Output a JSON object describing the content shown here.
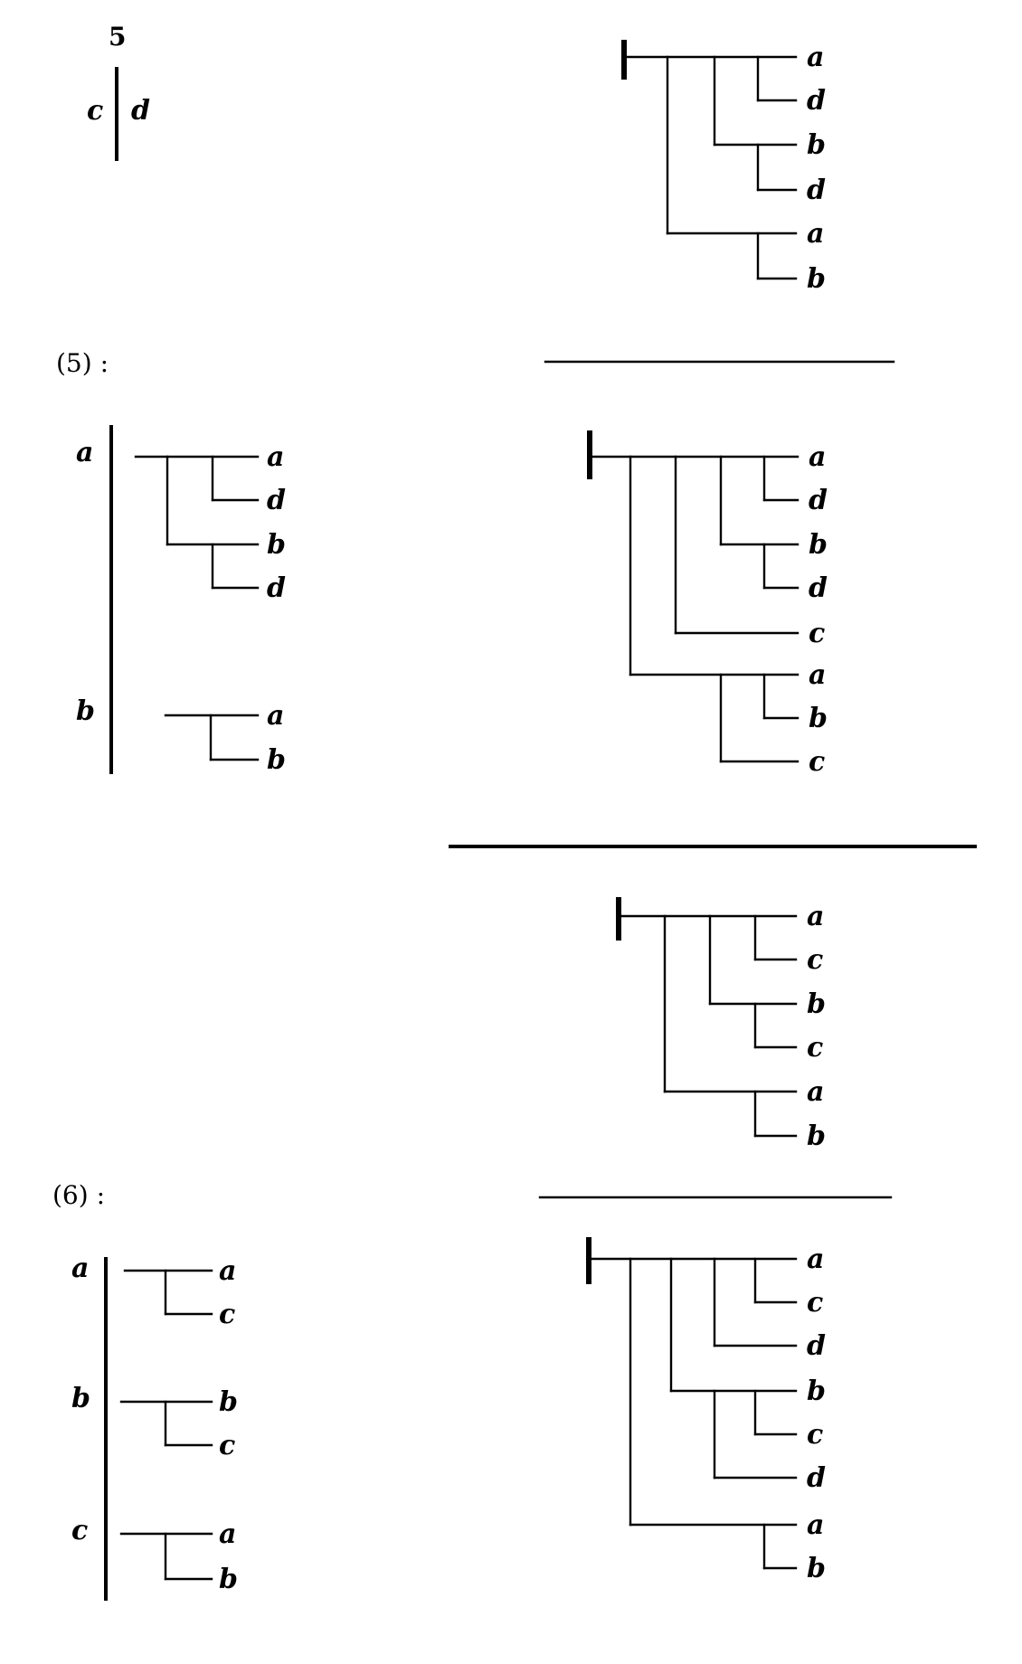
{
  "headers": {
    "top_number": "5",
    "step5": "(5) :",
    "step6": "(6) :"
  },
  "left": {
    "top": {
      "left_label": "c",
      "right_label": "d"
    },
    "step5": {
      "a": "a",
      "b": "b"
    },
    "step6": {
      "a": "a",
      "b": "b",
      "c": "c"
    }
  },
  "leaf_labels": {
    "tree1": [
      "a",
      "d",
      "b",
      "d",
      "a",
      "b"
    ],
    "s5a": [
      "a",
      "d",
      "b",
      "d"
    ],
    "s5b": [
      "a",
      "b"
    ],
    "tree2": [
      "a",
      "d",
      "b",
      "d",
      "c",
      "a",
      "b",
      "c"
    ],
    "tree3": [
      "a",
      "c",
      "b",
      "c",
      "a",
      "b"
    ],
    "s6a": [
      "a",
      "c"
    ],
    "s6b": [
      "b",
      "c"
    ],
    "s6c": [
      "a",
      "b"
    ],
    "tree4": [
      "a",
      "c",
      "d",
      "b",
      "c",
      "d",
      "a",
      "b"
    ]
  }
}
